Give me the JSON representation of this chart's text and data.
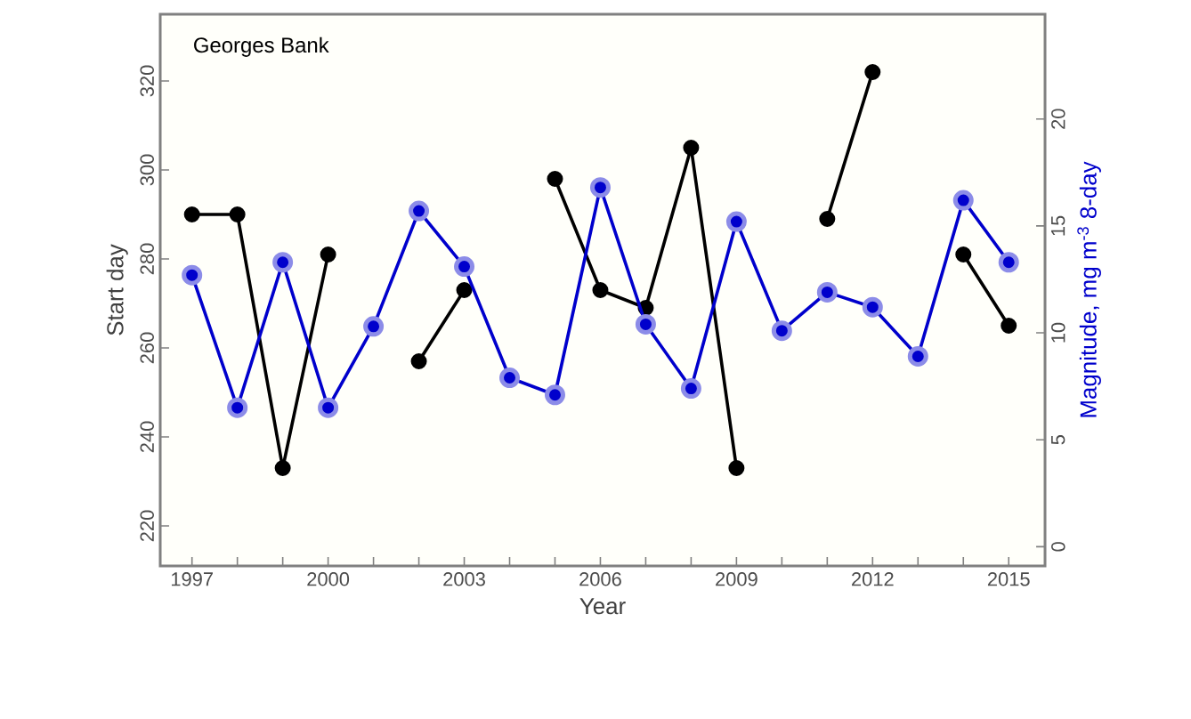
{
  "chart_data": {
    "type": "line",
    "annotations": [
      "Georges Bank"
    ],
    "xlabel": "Year",
    "ylabel": "Start day",
    "y2label": "Magnitude, mg m$^{-3}$ 8-day",
    "x": [
      1997,
      1998,
      1999,
      2000,
      2001,
      2002,
      2003,
      2004,
      2005,
      2006,
      2007,
      2008,
      2009,
      2010,
      2011,
      2012,
      2013,
      2014,
      2015
    ],
    "series": [
      {
        "color": "#000000",
        "values": [
          290,
          290,
          233,
          281,
          null,
          257,
          273,
          null,
          298,
          273,
          269,
          305,
          233,
          null,
          289,
          322,
          null,
          281,
          265
        ]
      },
      {
        "color": "#0000cc",
        "axis": "y2",
        "values": [
          12.7,
          6.5,
          13.3,
          6.5,
          10.3,
          15.7,
          13.1,
          7.9,
          7.1,
          16.8,
          10.4,
          7.4,
          15.2,
          10.1,
          11.9,
          11.2,
          8.9,
          16.2,
          13.3
        ]
      }
    ],
    "marker": "circle",
    "line_style": "solid",
    "xlim": [
      1996.3,
      2015.8
    ],
    "xticks": [
      1997,
      {
        "value": 1998,
        "label": null
      },
      {
        "value": 1999,
        "label": null
      },
      2000,
      {
        "value": 2001,
        "label": null
      },
      {
        "value": 2002,
        "label": null
      },
      2003,
      {
        "value": 2004,
        "label": null
      },
      {
        "value": 2005,
        "label": null
      },
      2006,
      {
        "value": 2007,
        "label": null
      },
      {
        "value": 2008,
        "label": null
      },
      2009,
      {
        "value": 2010,
        "label": null
      },
      {
        "value": 2011,
        "label": null
      },
      2012,
      {
        "value": 2013,
        "label": null
      },
      {
        "value": 2014,
        "label": null
      },
      2015
    ],
    "ylim": [
      211,
      335
    ],
    "yticks": [
      220,
      240,
      260,
      280,
      300,
      320
    ],
    "y2lim": [
      -0.9,
      24.9
    ],
    "y2ticks": [
      0,
      5,
      10,
      15,
      20
    ]
  }
}
